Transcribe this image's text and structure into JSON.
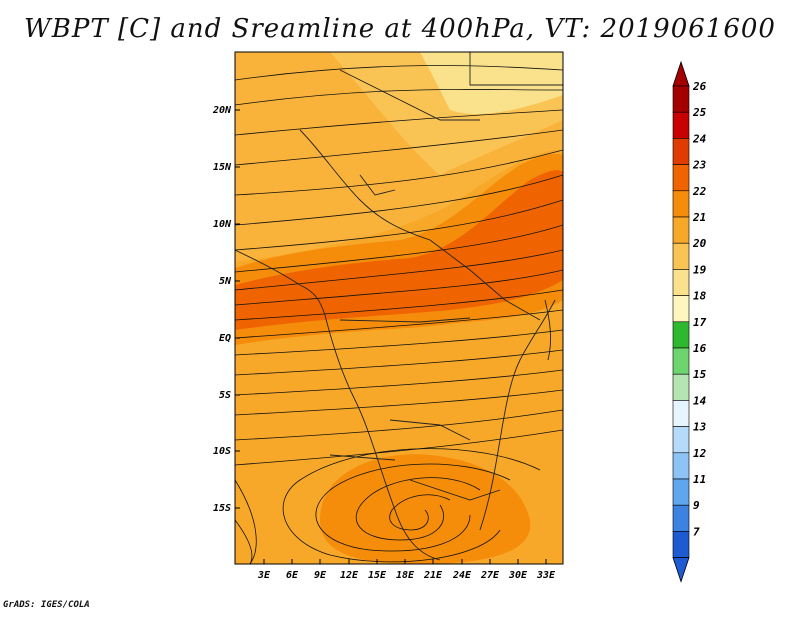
{
  "title": "WBPT [C] and Sreamline at 400hPa, VT: 2019061600",
  "credit": "GrADS: IGES/COLA",
  "map": {
    "lat_ticks": [
      "20N",
      "15N",
      "10N",
      "5N",
      "EQ",
      "5S",
      "10S",
      "15S"
    ],
    "lat_values": [
      20,
      15,
      10,
      5,
      0,
      -5,
      -10,
      -15
    ],
    "lon_ticks": [
      "3E",
      "6E",
      "9E",
      "12E",
      "15E",
      "18E",
      "21E",
      "24E",
      "27E",
      "30E",
      "33E"
    ],
    "lon_values": [
      3,
      6,
      9,
      12,
      15,
      18,
      21,
      24,
      27,
      30,
      33
    ]
  },
  "colorbar": {
    "labels": [
      "26",
      "25",
      "24",
      "23",
      "22",
      "21",
      "20",
      "19",
      "18",
      "17",
      "16",
      "15",
      "14",
      "13",
      "12",
      "11",
      "9",
      "7"
    ],
    "colors": [
      "#a50000",
      "#c80000",
      "#e03c00",
      "#f06400",
      "#f58c0a",
      "#f8a829",
      "#fac454",
      "#fae28c",
      "#fff5be",
      "#2db82d",
      "#6ed46e",
      "#b4e6b4",
      "#e6f5ff",
      "#b4dcfa",
      "#8ec4f5",
      "#5ea6ee",
      "#3c82e1",
      "#1e5ad2"
    ]
  }
}
